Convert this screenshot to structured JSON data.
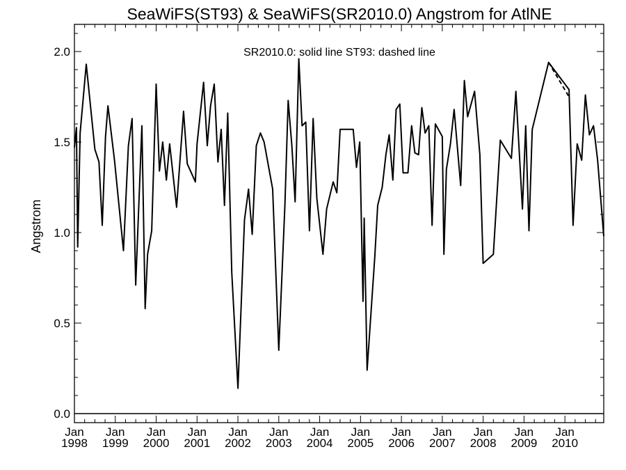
{
  "chart_data": {
    "type": "line",
    "title": "SeaWiFS(ST93) & SeaWiFS(SR2010.0)  Angstrom for AtlNE",
    "ylabel": "Angstrom",
    "xlabel": "",
    "annotation": "SR2010.0: solid line   ST93: dashed line",
    "ylim": [
      -0.05,
      2.15
    ],
    "xlim": [
      1998.0,
      2010.95
    ],
    "yticks": [
      0.0,
      0.5,
      1.0,
      1.5,
      2.0
    ],
    "ytick_labels": [
      "0.0",
      "0.5",
      "1.0",
      "1.5",
      "2.0"
    ],
    "xticks": [
      {
        "month": "Jan",
        "year": "1998",
        "x": 1998.0
      },
      {
        "month": "Jan",
        "year": "1999",
        "x": 1999.0
      },
      {
        "month": "Jan",
        "year": "2000",
        "x": 2000.0
      },
      {
        "month": "Jan",
        "year": "2001",
        "x": 2001.0
      },
      {
        "month": "Jan",
        "year": "2002",
        "x": 2002.0
      },
      {
        "month": "Jan",
        "year": "2003",
        "x": 2003.0
      },
      {
        "month": "Jan",
        "year": "2004",
        "x": 2004.0
      },
      {
        "month": "Jan",
        "year": "2005",
        "x": 2005.0
      },
      {
        "month": "Jan",
        "year": "2006",
        "x": 2006.0
      },
      {
        "month": "Jan",
        "year": "2007",
        "x": 2007.0
      },
      {
        "month": "Jan",
        "year": "2008",
        "x": 2008.0
      },
      {
        "month": "Jan",
        "year": "2009",
        "x": 2009.0
      },
      {
        "month": "Jan",
        "year": "2010",
        "x": 2010.0
      }
    ],
    "grid": false,
    "zero_line": true,
    "series": [
      {
        "name": "SR2010.0",
        "style": "solid",
        "color": "#000000",
        "points": [
          [
            1998.0,
            1.47
          ],
          [
            1998.05,
            1.58
          ],
          [
            1998.08,
            0.92
          ],
          [
            1998.14,
            1.55
          ],
          [
            1998.29,
            1.93
          ],
          [
            1998.5,
            1.46
          ],
          [
            1998.6,
            1.39
          ],
          [
            1998.68,
            1.04
          ],
          [
            1998.76,
            1.53
          ],
          [
            1998.82,
            1.7
          ],
          [
            1998.98,
            1.4
          ],
          [
            1999.2,
            0.9
          ],
          [
            1999.32,
            1.48
          ],
          [
            1999.41,
            1.63
          ],
          [
            1999.5,
            0.71
          ],
          [
            1999.65,
            1.59
          ],
          [
            1999.73,
            0.58
          ],
          [
            1999.79,
            0.88
          ],
          [
            1999.89,
            1.01
          ],
          [
            2000.0,
            1.82
          ],
          [
            2000.08,
            1.34
          ],
          [
            2000.16,
            1.5
          ],
          [
            2000.25,
            1.29
          ],
          [
            2000.33,
            1.49
          ],
          [
            2000.5,
            1.14
          ],
          [
            2000.67,
            1.67
          ],
          [
            2000.76,
            1.38
          ],
          [
            2000.96,
            1.28
          ],
          [
            2001.0,
            1.49
          ],
          [
            2001.16,
            1.83
          ],
          [
            2001.25,
            1.48
          ],
          [
            2001.33,
            1.7
          ],
          [
            2001.42,
            1.82
          ],
          [
            2001.51,
            1.39
          ],
          [
            2001.59,
            1.57
          ],
          [
            2001.67,
            1.15
          ],
          [
            2001.75,
            1.66
          ],
          [
            2001.85,
            0.78
          ],
          [
            2002.0,
            0.14
          ],
          [
            2002.16,
            1.07
          ],
          [
            2002.26,
            1.24
          ],
          [
            2002.35,
            0.99
          ],
          [
            2002.45,
            1.48
          ],
          [
            2002.55,
            1.55
          ],
          [
            2002.64,
            1.5
          ],
          [
            2002.85,
            1.24
          ],
          [
            2003.0,
            0.35
          ],
          [
            2003.15,
            1.15
          ],
          [
            2003.23,
            1.73
          ],
          [
            2003.32,
            1.48
          ],
          [
            2003.4,
            1.17
          ],
          [
            2003.49,
            1.96
          ],
          [
            2003.57,
            1.59
          ],
          [
            2003.66,
            1.61
          ],
          [
            2003.75,
            1.01
          ],
          [
            2003.84,
            1.63
          ],
          [
            2003.93,
            1.19
          ],
          [
            2004.08,
            0.88
          ],
          [
            2004.17,
            1.13
          ],
          [
            2004.33,
            1.28
          ],
          [
            2004.42,
            1.22
          ],
          [
            2004.5,
            1.57
          ],
          [
            2004.82,
            1.57
          ],
          [
            2004.9,
            1.36
          ],
          [
            2004.98,
            1.5
          ],
          [
            2005.06,
            0.62
          ],
          [
            2005.09,
            1.08
          ],
          [
            2005.16,
            0.24
          ],
          [
            2005.35,
            0.87
          ],
          [
            2005.42,
            1.15
          ],
          [
            2005.53,
            1.25
          ],
          [
            2005.62,
            1.43
          ],
          [
            2005.7,
            1.54
          ],
          [
            2005.79,
            1.29
          ],
          [
            2005.87,
            1.68
          ],
          [
            2005.96,
            1.71
          ],
          [
            2006.04,
            1.33
          ],
          [
            2006.16,
            1.33
          ],
          [
            2006.25,
            1.59
          ],
          [
            2006.33,
            1.44
          ],
          [
            2006.42,
            1.43
          ],
          [
            2006.5,
            1.69
          ],
          [
            2006.58,
            1.55
          ],
          [
            2006.67,
            1.59
          ],
          [
            2006.75,
            1.04
          ],
          [
            2006.83,
            1.6
          ],
          [
            2007.0,
            1.53
          ],
          [
            2007.04,
            0.88
          ],
          [
            2007.1,
            1.35
          ],
          [
            2007.2,
            1.49
          ],
          [
            2007.29,
            1.68
          ],
          [
            2007.45,
            1.26
          ],
          [
            2007.54,
            1.84
          ],
          [
            2007.62,
            1.64
          ],
          [
            2007.79,
            1.78
          ],
          [
            2007.92,
            1.43
          ],
          [
            2008.0,
            0.83
          ],
          [
            2008.25,
            0.88
          ],
          [
            2008.42,
            1.51
          ],
          [
            2008.69,
            1.41
          ],
          [
            2008.8,
            1.78
          ],
          [
            2008.96,
            1.13
          ],
          [
            2009.04,
            1.59
          ],
          [
            2009.12,
            1.01
          ],
          [
            2009.2,
            1.57
          ],
          [
            2009.6,
            1.94
          ],
          [
            2010.1,
            1.79
          ],
          [
            2010.2,
            1.04
          ],
          [
            2010.3,
            1.49
          ],
          [
            2010.41,
            1.4
          ],
          [
            2010.5,
            1.76
          ],
          [
            2010.6,
            1.54
          ],
          [
            2010.7,
            1.59
          ],
          [
            2010.8,
            1.4
          ],
          [
            2010.95,
            0.98
          ]
        ]
      },
      {
        "name": "ST93",
        "style": "dashed",
        "color": "#000000",
        "points": [
          [
            2009.6,
            1.94
          ],
          [
            2010.1,
            1.75
          ]
        ]
      }
    ]
  }
}
